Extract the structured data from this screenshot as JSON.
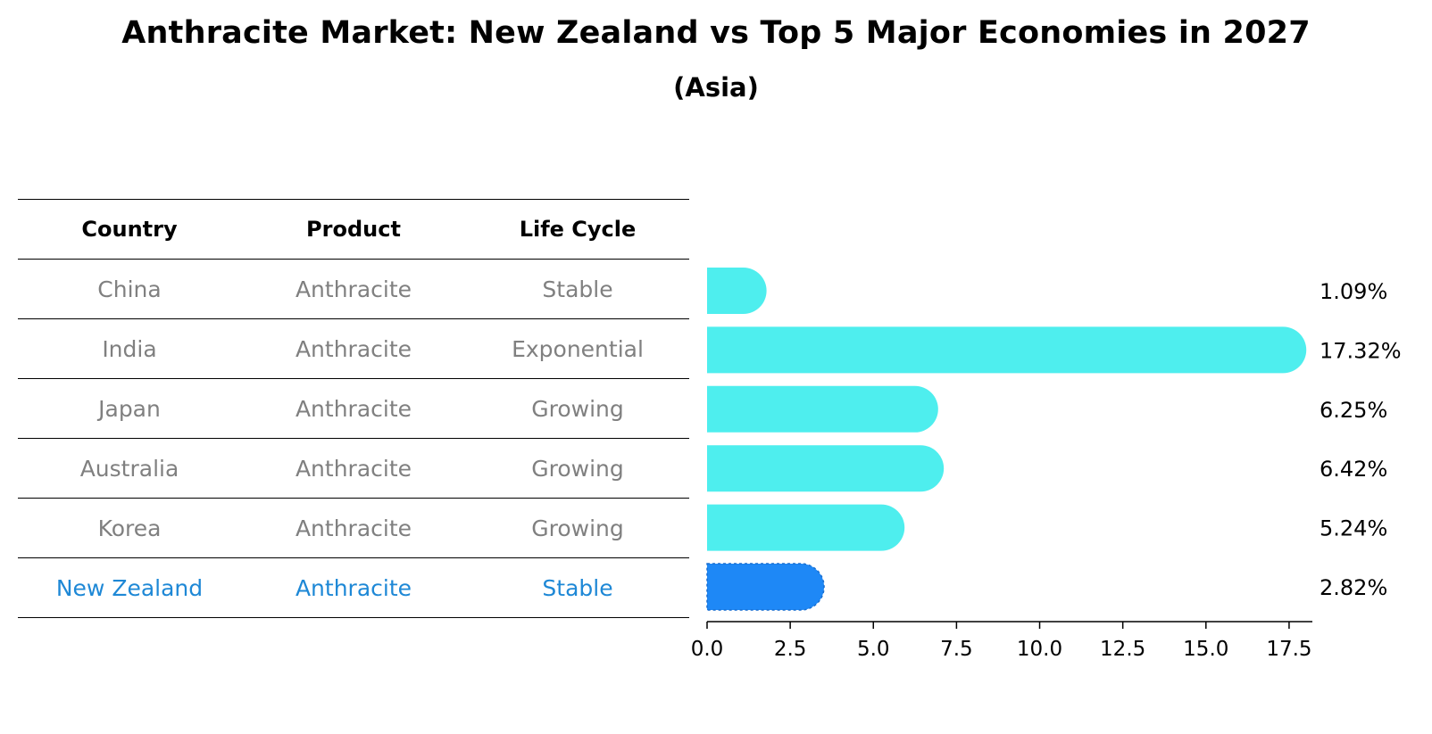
{
  "title": "Anthracite Market: New Zealand vs Top 5 Major Economies in 2027",
  "subtitle": "(Asia)",
  "table": {
    "headers": [
      "Country",
      "Product",
      "Life Cycle"
    ],
    "rows": [
      {
        "country": "China",
        "product": "Anthracite",
        "life_cycle": "Stable"
      },
      {
        "country": "India",
        "product": "Anthracite",
        "life_cycle": "Exponential"
      },
      {
        "country": "Japan",
        "product": "Anthracite",
        "life_cycle": "Growing"
      },
      {
        "country": "Australia",
        "product": "Anthracite",
        "life_cycle": "Growing"
      },
      {
        "country": "Korea",
        "product": "Anthracite",
        "life_cycle": "Growing"
      },
      {
        "country": "New Zealand",
        "product": "Anthracite",
        "life_cycle": "Stable"
      }
    ]
  },
  "colors": {
    "bar": "#4eeeee",
    "highlight_bar": "#1e88f6",
    "highlight_text": "#1e88d6",
    "muted_text": "#808080"
  },
  "chart_data": {
    "type": "bar",
    "orientation": "horizontal",
    "categories": [
      "China",
      "India",
      "Japan",
      "Australia",
      "Korea",
      "New Zealand"
    ],
    "values": [
      1.09,
      17.32,
      6.25,
      6.42,
      5.24,
      2.82
    ],
    "value_labels": [
      "1.09%",
      "17.32%",
      "6.25%",
      "6.42%",
      "5.24%",
      "2.82%"
    ],
    "highlight": "New Zealand",
    "xlim": [
      0,
      18.2
    ],
    "xticks": [
      0.0,
      2.5,
      5.0,
      7.5,
      10.0,
      12.5,
      15.0,
      17.5
    ],
    "xtick_labels": [
      "0.0",
      "2.5",
      "5.0",
      "7.5",
      "10.0",
      "12.5",
      "15.0",
      "17.5"
    ],
    "xlabel": "",
    "ylabel": "",
    "grid": false
  }
}
